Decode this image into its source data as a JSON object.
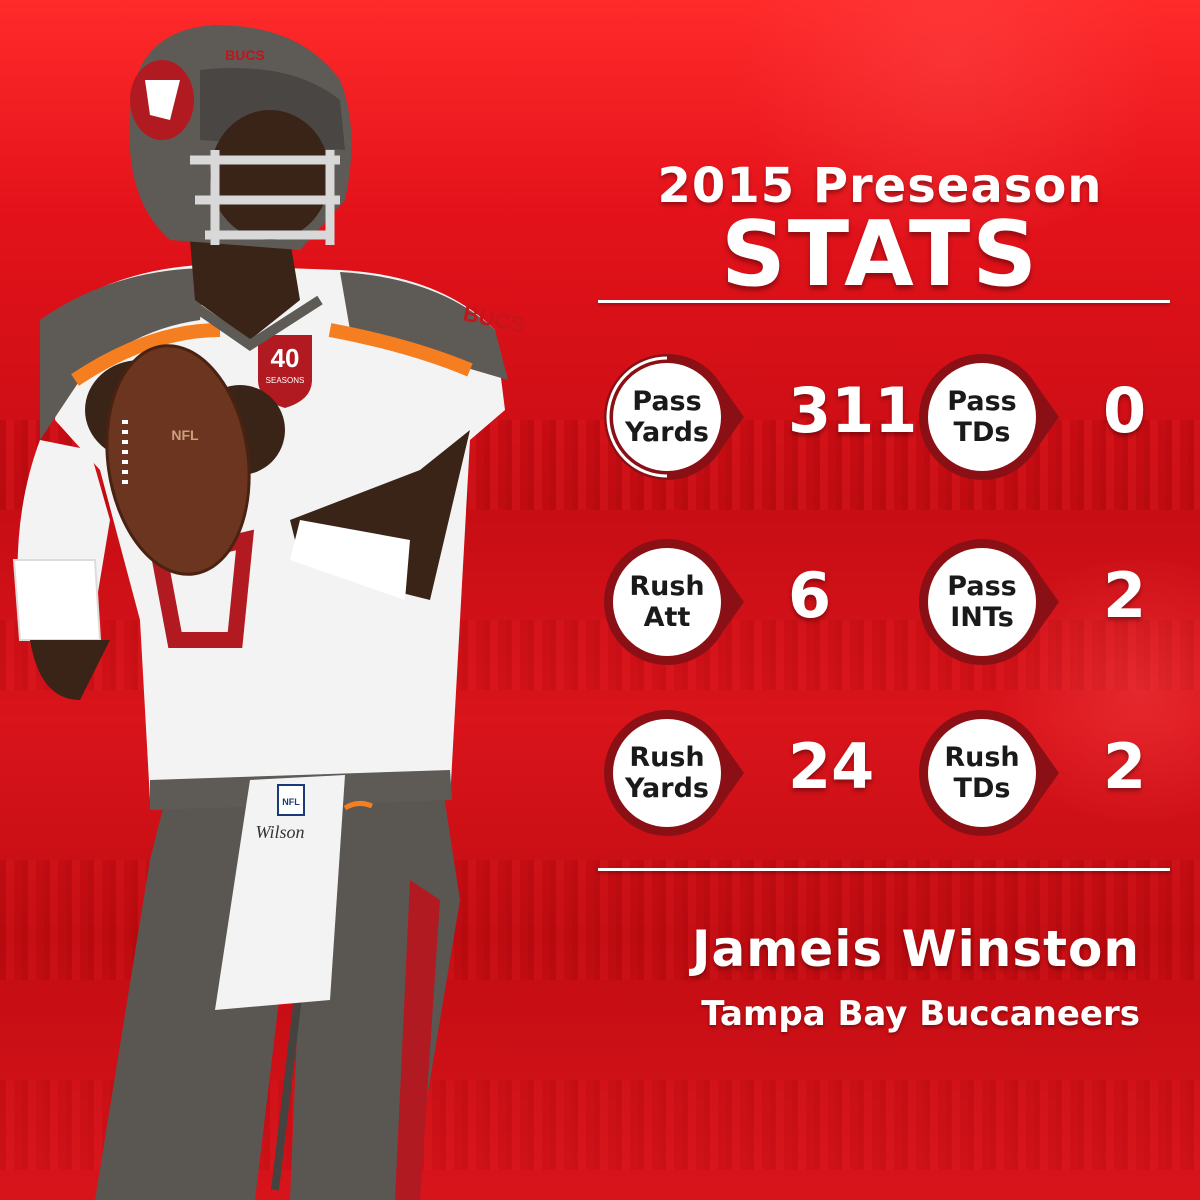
{
  "header": {
    "line1": "2015 Preseason",
    "line2": "STATS"
  },
  "stats": [
    {
      "label": "Pass\nYards",
      "value": "311"
    },
    {
      "label": "Pass\nTDs",
      "value": "0"
    },
    {
      "label": "Rush\nAtt",
      "value": "6"
    },
    {
      "label": "Pass\nINTs",
      "value": "2"
    },
    {
      "label": "Rush\nYards",
      "value": "24"
    },
    {
      "label": "Rush\nTDs",
      "value": "2"
    }
  ],
  "player": {
    "name": "Jameis Winston",
    "team": "Tampa Bay Buccaneers",
    "helmet_text": "BUCS",
    "sleeve_text": "BUCS",
    "patch_text": "40",
    "patch_subtext": "SEASONS",
    "football_text": "NFL",
    "waist_text": "NFL",
    "towel_text": "Wilson"
  },
  "colors": {
    "background": "#d7151c",
    "pewter": "#5e5a55",
    "badge_ring": "#8b1015",
    "text": "#ffffff",
    "orange": "#f57f20"
  }
}
